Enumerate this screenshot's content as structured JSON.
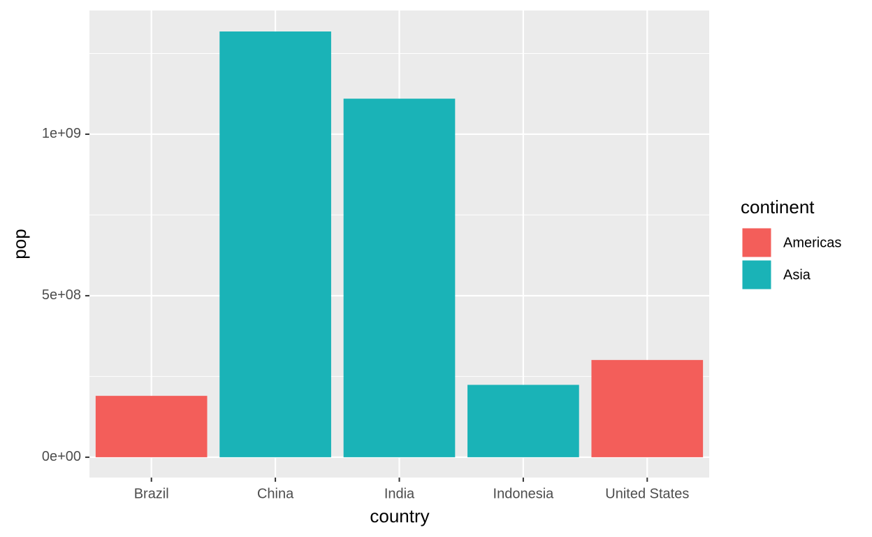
{
  "chart_data": {
    "type": "bar",
    "x_label": "country",
    "y_label": "pop",
    "categories": [
      "Brazil",
      "China",
      "India",
      "Indonesia",
      "United States"
    ],
    "series": [
      {
        "name": "Americas",
        "color": "#f35e5a",
        "values": [
          190000000,
          null,
          null,
          null,
          301000000
        ]
      },
      {
        "name": "Asia",
        "color": "#1ab3b7",
        "values": [
          null,
          1318000000,
          1110000000,
          224000000,
          null
        ]
      }
    ],
    "legend_title": "continent",
    "legend_position": "right",
    "ylim": [
      -63000000,
      1383000000
    ],
    "yticks": [
      {
        "value": 0,
        "label": "0e+00"
      },
      {
        "value": 500000000,
        "label": "5e+08"
      },
      {
        "value": 1000000000,
        "label": "1e+09"
      }
    ],
    "yminorticks": [
      250000000,
      750000000,
      1250000000
    ],
    "grid": true
  }
}
